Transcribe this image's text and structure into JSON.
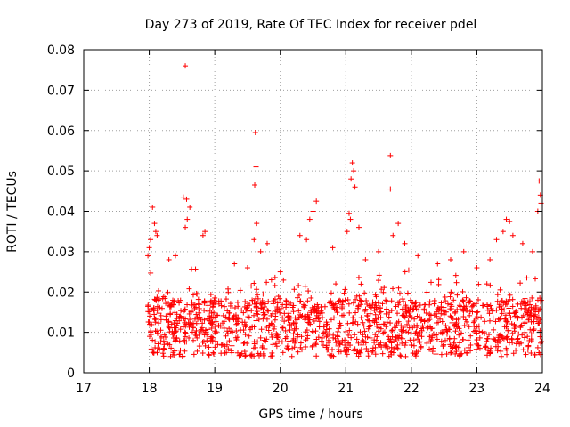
{
  "chart_data": {
    "type": "scatter",
    "title": "Day 273 of 2019, Rate Of TEC Index for receiver pdel",
    "xlabel": "GPS time / hours",
    "ylabel": "ROTI / TECUs",
    "xlim": [
      17,
      24
    ],
    "ylim": [
      0,
      0.08
    ],
    "xticks": [
      17,
      18,
      19,
      20,
      21,
      22,
      23,
      24
    ],
    "yticks": [
      0,
      0.01,
      0.02,
      0.03,
      0.04,
      0.05,
      0.06,
      0.07,
      0.08
    ],
    "ytick_labels": [
      "0",
      "0.01",
      "0.02",
      "0.03",
      "0.04",
      "0.05",
      "0.06",
      "0.07",
      "0.08"
    ],
    "xtick_labels": [
      "17",
      "18",
      "19",
      "20",
      "21",
      "22",
      "23",
      "24"
    ],
    "grid": true,
    "marker": "+",
    "color": "#ff0000",
    "series": [
      {
        "name": "ROTI",
        "points": [
          [
            18.55,
            0.076
          ],
          [
            19.62,
            0.0595
          ],
          [
            19.63,
            0.051
          ],
          [
            19.61,
            0.0465
          ],
          [
            21.68,
            0.0538
          ],
          [
            21.1,
            0.052
          ],
          [
            21.12,
            0.05
          ],
          [
            21.08,
            0.048
          ],
          [
            21.14,
            0.046
          ],
          [
            21.68,
            0.0455
          ],
          [
            20.55,
            0.0425
          ],
          [
            20.5,
            0.04
          ],
          [
            20.45,
            0.038
          ],
          [
            18.05,
            0.041
          ],
          [
            18.52,
            0.0435
          ],
          [
            18.57,
            0.043
          ],
          [
            18.62,
            0.041
          ],
          [
            23.95,
            0.0475
          ],
          [
            23.97,
            0.044
          ],
          [
            23.98,
            0.042
          ],
          [
            23.93,
            0.04
          ],
          [
            23.45,
            0.038
          ],
          [
            23.5,
            0.0375
          ],
          [
            21.8,
            0.037
          ],
          [
            21.05,
            0.0395
          ],
          [
            21.07,
            0.038
          ],
          [
            18.08,
            0.037
          ],
          [
            18.1,
            0.035
          ],
          [
            18.02,
            0.033
          ],
          [
            18.0,
            0.031
          ],
          [
            17.98,
            0.029
          ],
          [
            18.12,
            0.034
          ],
          [
            18.58,
            0.038
          ],
          [
            18.55,
            0.036
          ],
          [
            18.85,
            0.035
          ],
          [
            18.82,
            0.034
          ],
          [
            19.64,
            0.037
          ],
          [
            19.6,
            0.033
          ],
          [
            19.7,
            0.03
          ],
          [
            19.8,
            0.032
          ],
          [
            21.02,
            0.035
          ],
          [
            21.2,
            0.036
          ],
          [
            21.3,
            0.028
          ],
          [
            21.5,
            0.03
          ],
          [
            21.72,
            0.034
          ],
          [
            20.3,
            0.034
          ],
          [
            20.4,
            0.033
          ],
          [
            22.1,
            0.029
          ],
          [
            22.4,
            0.027
          ],
          [
            22.6,
            0.028
          ],
          [
            23.3,
            0.033
          ],
          [
            23.4,
            0.035
          ],
          [
            23.55,
            0.034
          ],
          [
            23.7,
            0.032
          ],
          [
            23.85,
            0.03
          ],
          [
            18.3,
            0.028
          ],
          [
            18.4,
            0.029
          ],
          [
            19.3,
            0.027
          ],
          [
            19.5,
            0.026
          ],
          [
            20.0,
            0.025
          ],
          [
            20.8,
            0.031
          ],
          [
            21.9,
            0.032
          ],
          [
            22.8,
            0.03
          ],
          [
            23.0,
            0.026
          ],
          [
            23.2,
            0.028
          ]
        ]
      }
    ]
  }
}
